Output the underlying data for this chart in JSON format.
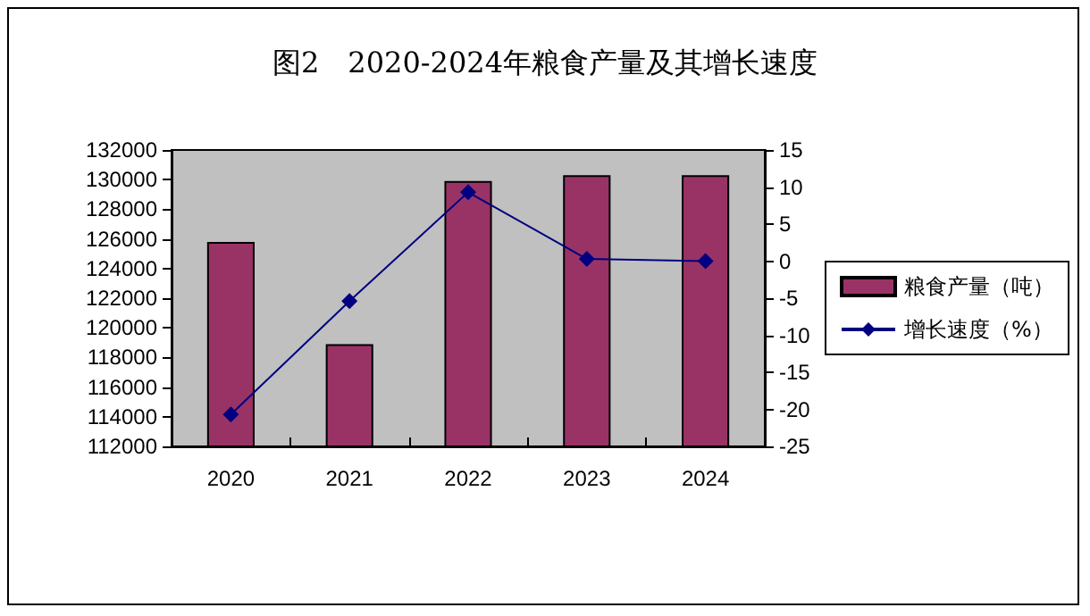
{
  "chart_data": {
    "type": "bar",
    "title": "图2　2020-2024年粮食产量及其增长速度",
    "categories": [
      "2020",
      "2021",
      "2022",
      "2023",
      "2024"
    ],
    "series": [
      {
        "name": "粮食产量（吨）",
        "color": "#993366",
        "values": [
          125800,
          118900,
          129900,
          130300,
          130300
        ]
      },
      {
        "name": "增长速度（%）",
        "type": "line",
        "axis": "y2",
        "color": "#000080",
        "marker": "diamond",
        "values": [
          -20.7,
          -5.4,
          9.3,
          0.3,
          0.0
        ]
      }
    ],
    "ylim": [
      112000,
      132000
    ],
    "yticks": [
      112000,
      114000,
      116000,
      118000,
      120000,
      122000,
      124000,
      126000,
      128000,
      130000,
      132000
    ],
    "y2lim": [
      -25,
      15
    ],
    "y2ticks": [
      -25,
      -20,
      -15,
      -10,
      -5,
      0,
      5,
      10,
      15
    ],
    "grid": false,
    "legend": "right"
  }
}
